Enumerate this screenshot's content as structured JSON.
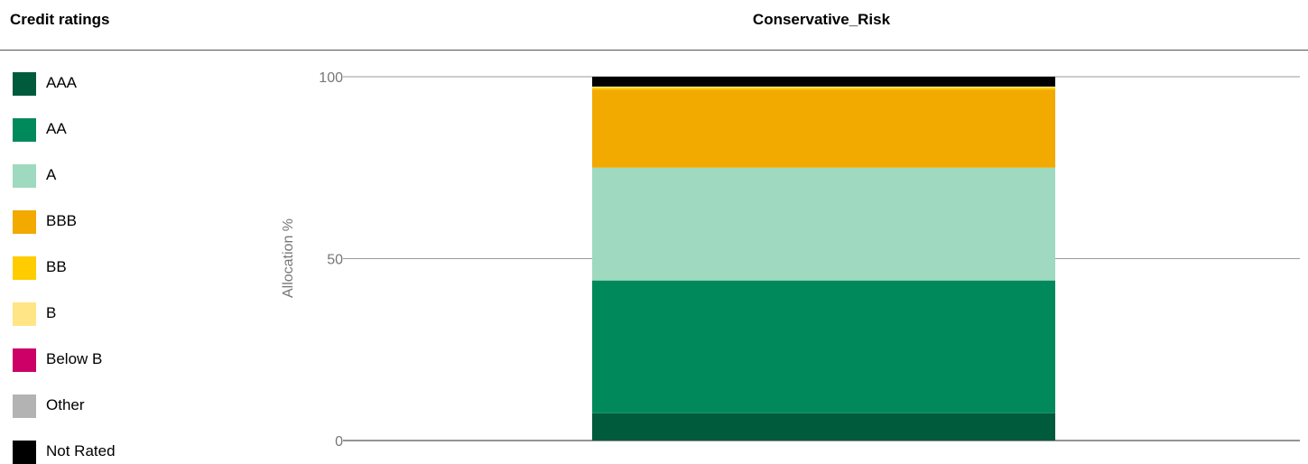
{
  "legend": {
    "title": "Credit ratings",
    "items": [
      {
        "label": "AAA",
        "color": "#005a3c"
      },
      {
        "label": "AA",
        "color": "#008a5c"
      },
      {
        "label": "A",
        "color": "#9fd9c0"
      },
      {
        "label": "BBB",
        "color": "#f2a900"
      },
      {
        "label": "BB",
        "color": "#ffcc00"
      },
      {
        "label": "B",
        "color": "#ffe585"
      },
      {
        "label": "Below B",
        "color": "#cc0066"
      },
      {
        "label": "Other",
        "color": "#b3b3b3"
      },
      {
        "label": "Not Rated",
        "color": "#000000"
      }
    ]
  },
  "chart_data": {
    "type": "bar",
    "stacked": true,
    "title": "Conservative_Risk",
    "ylabel": "Allocation %",
    "xlabel": "",
    "categories": [
      "Conservative_Risk"
    ],
    "ylim": [
      0,
      100
    ],
    "yticks": [
      0,
      50,
      100
    ],
    "grid": true,
    "legend_position": "left",
    "series": [
      {
        "name": "AAA",
        "values": [
          7.5
        ]
      },
      {
        "name": "AA",
        "values": [
          36.5
        ]
      },
      {
        "name": "A",
        "values": [
          31
        ]
      },
      {
        "name": "BBB",
        "values": [
          21.5
        ]
      },
      {
        "name": "BB",
        "values": [
          0.5
        ]
      },
      {
        "name": "B",
        "values": [
          0.3
        ]
      },
      {
        "name": "Below B",
        "values": [
          0
        ]
      },
      {
        "name": "Other",
        "values": [
          0
        ]
      },
      {
        "name": "Not Rated",
        "values": [
          2.7
        ]
      }
    ]
  }
}
